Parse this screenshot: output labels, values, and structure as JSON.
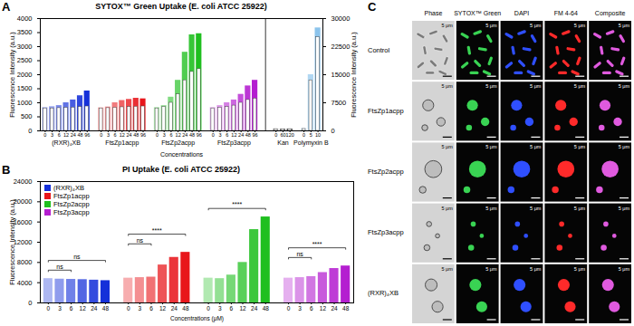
{
  "chart_data": [
    {
      "panel": "A",
      "type": "bar",
      "title": "SYTOX™ Green Uptake (E. coli ATCC 25922)",
      "x_label": "Concentrations",
      "y_label": "Fluorescence Intensity (a.u.)",
      "y2_label": "Fluorescence Intensity (a.u.)",
      "ylim": [
        0,
        4000
      ],
      "yticks": [
        0,
        500,
        1000,
        1500,
        2000,
        2500,
        3000,
        3500,
        4000
      ],
      "y2lim": [
        0,
        30000
      ],
      "y2ticks": [
        0,
        7500,
        15000,
        22500,
        30000
      ],
      "series": [
        {
          "name": "(RXR)₄XB",
          "color": "#1530d9",
          "categories": [
            "0",
            "3",
            "6",
            "12",
            "24",
            "48",
            "96"
          ],
          "values": [
            830,
            860,
            900,
            1000,
            1100,
            1250,
            1420
          ],
          "overlay_values": [
            800,
            800,
            810,
            820,
            830,
            850,
            870
          ]
        },
        {
          "name": "FtsZp1acpp",
          "color": "#e8161b",
          "categories": [
            "0",
            "3",
            "6",
            "12",
            "24",
            "48",
            "96"
          ],
          "values": [
            820,
            850,
            1000,
            1080,
            1120,
            1160,
            1140
          ],
          "overlay_values": [
            800,
            810,
            820,
            840,
            850,
            860,
            870
          ]
        },
        {
          "name": "FtsZp2acpp",
          "color": "#1fbf1f",
          "categories": [
            "0",
            "3",
            "6",
            "12",
            "24",
            "48",
            "96"
          ],
          "values": [
            830,
            900,
            1200,
            1800,
            2800,
            3420,
            3460
          ],
          "overlay_values": [
            800,
            850,
            1000,
            1300,
            1800,
            2100,
            2200
          ]
        },
        {
          "name": "FtsZp3acpp",
          "color": "#b41ed0",
          "categories": [
            "0",
            "3",
            "6",
            "12",
            "24",
            "48",
            "96"
          ],
          "values": [
            830,
            900,
            1000,
            1100,
            1300,
            1600,
            1800
          ],
          "overlay_values": [
            800,
            820,
            850,
            900,
            1000,
            1100,
            1150
          ]
        },
        {
          "name": "Kan",
          "color": "#3a3a3a",
          "axis": "y2",
          "categories": [
            "0",
            "60",
            "120"
          ],
          "values": [
            500,
            480,
            490
          ],
          "overlay_values": [
            450,
            440,
            450
          ]
        },
        {
          "name": "Polymyxin B",
          "color": "#8cc4ec",
          "axis": "y2",
          "categories": [
            "0",
            "5",
            "10"
          ],
          "values": [
            600,
            15000,
            27500
          ],
          "overlay_values": [
            500,
            13500,
            25000
          ]
        }
      ]
    },
    {
      "panel": "B",
      "type": "bar",
      "title": "PI Uptake (E. coli ATCC 25922)",
      "x_label": "Concentrations (μM)",
      "y_label": "Fluorescence Intensity (a.u.)",
      "ylim": [
        0,
        24000
      ],
      "yticks": [
        0,
        4000,
        8000,
        12000,
        16000,
        20000,
        24000
      ],
      "categories": [
        "0",
        "3",
        "6",
        "12",
        "24",
        "48"
      ],
      "legend": "top-left",
      "series": [
        {
          "name": "(RXR)₄XB",
          "color": "#1530d9",
          "values": [
            4800,
            4700,
            4650,
            4600,
            4500,
            4400
          ]
        },
        {
          "name": "FtsZp1acpp",
          "color": "#e8161b",
          "values": [
            4900,
            5000,
            5100,
            7500,
            9000,
            10000
          ]
        },
        {
          "name": "FtsZp2acpp",
          "color": "#1fbf1f",
          "values": [
            4900,
            4800,
            5500,
            8000,
            14500,
            17000
          ]
        },
        {
          "name": "FtsZp3acpp",
          "color": "#b41ed0",
          "values": [
            4900,
            5000,
            5200,
            6000,
            6800,
            7300
          ]
        }
      ],
      "annotations": [
        {
          "series": "(RXR)₄XB",
          "from": "0",
          "to": "6",
          "text": "ns"
        },
        {
          "series": "(RXR)₄XB",
          "from": "0",
          "to": "48",
          "text": "ns"
        },
        {
          "series": "FtsZp1acpp",
          "from": "0",
          "to": "6",
          "text": "ns"
        },
        {
          "series": "FtsZp1acpp",
          "from": "0",
          "to": "48",
          "text": "****"
        },
        {
          "series": "FtsZp2acpp",
          "from": "0",
          "to": "48",
          "text": "****"
        },
        {
          "series": "FtsZp3acpp",
          "from": "0",
          "to": "6",
          "text": "ns"
        },
        {
          "series": "FtsZp3acpp",
          "from": "0",
          "to": "48",
          "text": "****"
        }
      ]
    },
    {
      "panel": "C",
      "type": "image_grid",
      "columns": [
        "Phase",
        "SYTOX™ Green",
        "DAPI",
        "FM 4-64",
        "Composite"
      ],
      "rows": [
        "Control",
        "FtsZp1acpp",
        "FtsZp2acpp",
        "FtsZp3acpp",
        "(RXR)₄XB"
      ],
      "colors": [
        "#7a7a7a",
        "#39d353",
        "#2f4fff",
        "#ff2a2a",
        "#e05adf"
      ],
      "scale_bar": "5 μm"
    }
  ]
}
